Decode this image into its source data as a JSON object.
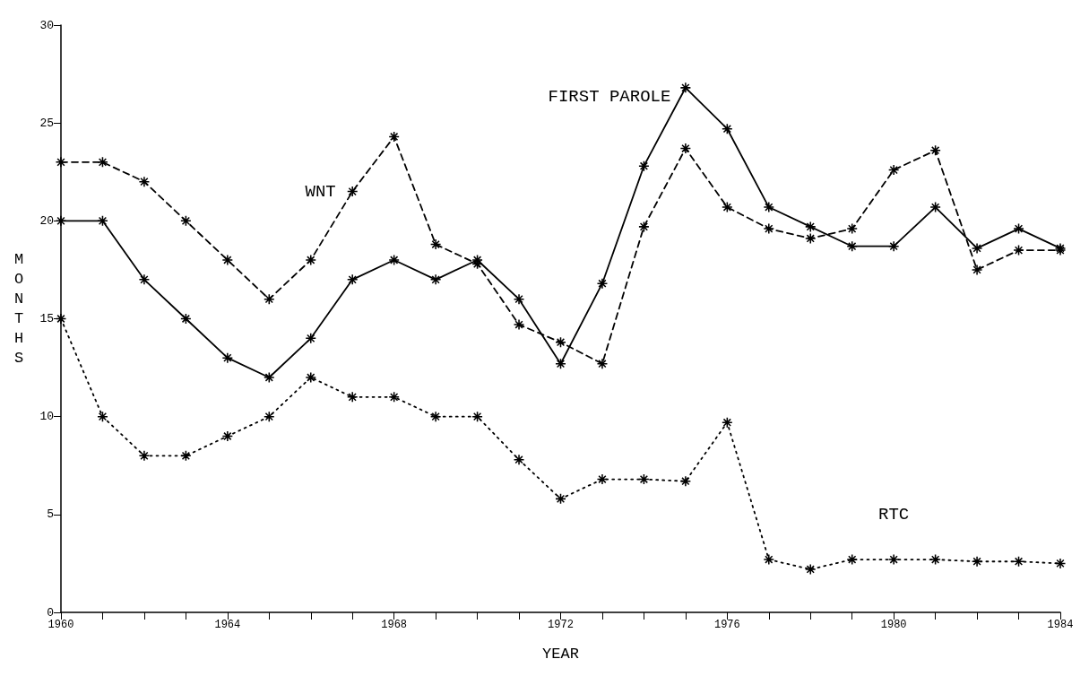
{
  "chart_data": {
    "type": "line",
    "xlabel": "YEAR",
    "ylabel": "MONTHS",
    "x": [
      1960,
      1961,
      1962,
      1963,
      1964,
      1965,
      1966,
      1967,
      1968,
      1969,
      1970,
      1971,
      1972,
      1973,
      1974,
      1975,
      1976,
      1977,
      1978,
      1979,
      1980,
      1981,
      1982,
      1983,
      1984
    ],
    "series": [
      {
        "name": "FIRST PAROLE",
        "color": "#000000",
        "line_style": "solid",
        "values": [
          20,
          20,
          17,
          15,
          13,
          12,
          14,
          17,
          18,
          17,
          18,
          16,
          12.7,
          16.8,
          22.8,
          26.8,
          24.7,
          20.7,
          19.7,
          18.7,
          18.7,
          20.7,
          18.6,
          19.6,
          18.6
        ]
      },
      {
        "name": "WNT",
        "color": "#000000",
        "line_style": "dashed",
        "values": [
          23,
          23,
          22,
          20,
          18,
          16,
          18,
          21.5,
          24.3,
          18.8,
          17.8,
          14.7,
          13.8,
          12.7,
          19.7,
          23.7,
          20.7,
          19.6,
          19.1,
          19.6,
          22.6,
          23.6,
          17.5,
          18.5,
          18.5
        ]
      },
      {
        "name": "RTC",
        "color": "#000000",
        "line_style": "dotted",
        "values": [
          15,
          10,
          8,
          8,
          9,
          10,
          12,
          11,
          11,
          10,
          10,
          7.8,
          5.8,
          6.8,
          6.8,
          6.7,
          9.7,
          2.7,
          2.2,
          2.7,
          2.7,
          2.7,
          2.6,
          2.6,
          2.5
        ]
      }
    ],
    "xlim": [
      1960,
      1984
    ],
    "xticks": [
      1960,
      {
        "value": 1961,
        "label": null
      },
      {
        "value": 1962,
        "label": null
      },
      {
        "value": 1963,
        "label": null
      },
      1964,
      {
        "value": 1965,
        "label": null
      },
      {
        "value": 1966,
        "label": null
      },
      {
        "value": 1967,
        "label": null
      },
      1968,
      {
        "value": 1969,
        "label": null
      },
      {
        "value": 1970,
        "label": null
      },
      {
        "value": 1971,
        "label": null
      },
      1972,
      {
        "value": 1973,
        "label": null
      },
      {
        "value": 1974,
        "label": null
      },
      {
        "value": 1975,
        "label": null
      },
      1976,
      {
        "value": 1977,
        "label": null
      },
      {
        "value": 1978,
        "label": null
      },
      {
        "value": 1979,
        "label": null
      },
      1980,
      {
        "value": 1981,
        "label": null
      },
      {
        "value": 1982,
        "label": null
      },
      {
        "value": 1983,
        "label": null
      },
      1984
    ],
    "ylim": [
      0,
      30
    ],
    "yticks": [
      0,
      5,
      10,
      15,
      20,
      25,
      30
    ],
    "grid": false,
    "marker": "cross"
  }
}
